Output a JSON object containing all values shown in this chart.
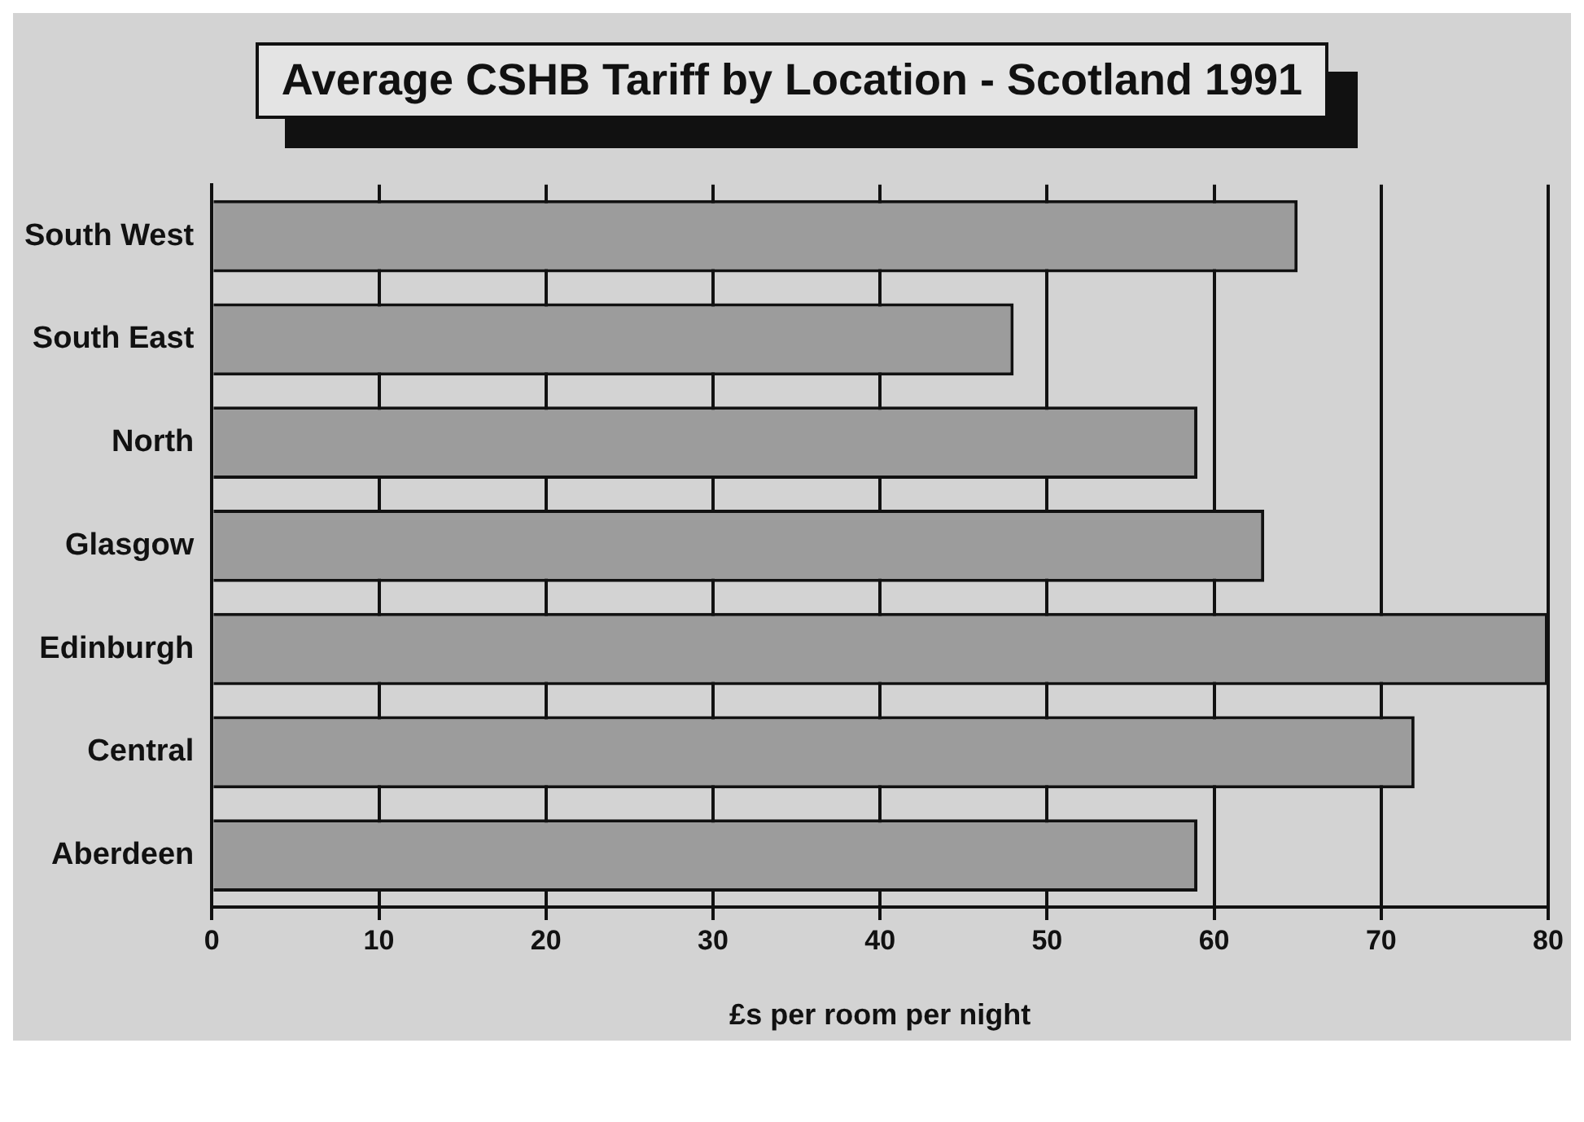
{
  "chart_data": {
    "type": "bar",
    "orientation": "horizontal",
    "title": "Average CSHB Tariff by Location - Scotland 1991",
    "xlabel": "£s per room per night",
    "categories": [
      "South West",
      "South East",
      "North",
      "Glasgow",
      "Edinburgh",
      "Central",
      "Aberdeen"
    ],
    "values": [
      65,
      48,
      59,
      63,
      80,
      72,
      59
    ],
    "color": "#9c9c9c",
    "xlim": [
      0,
      80
    ],
    "xticks": [
      0,
      10,
      20,
      30,
      40,
      50,
      60,
      70,
      80
    ],
    "grid": "x",
    "legend": false
  }
}
